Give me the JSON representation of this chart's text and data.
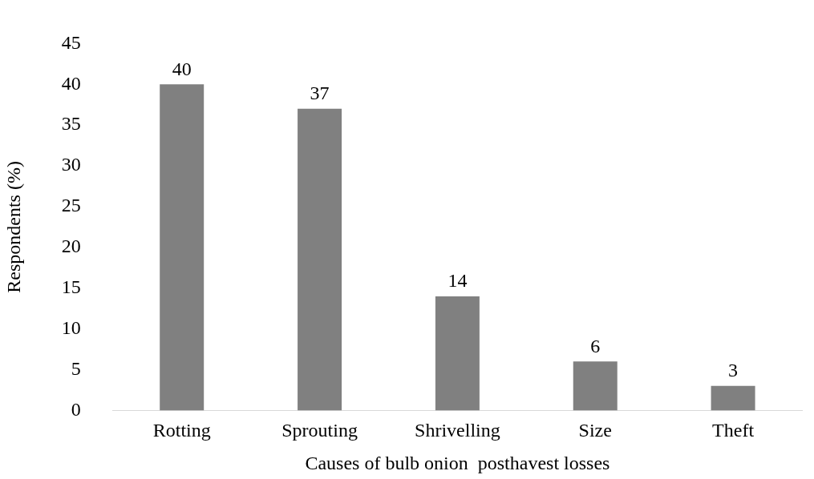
{
  "chart_data": {
    "type": "bar",
    "xlabel": "Causes of bulb onion  posthavest losses",
    "ylabel": "Respondents (%)",
    "categories": [
      "Rotting",
      "Sprouting",
      "Shrivelling",
      "Size",
      "Theft"
    ],
    "values": [
      40,
      37,
      14,
      6,
      3
    ],
    "color": "#808080",
    "ylim": [
      0,
      45
    ],
    "yticks": [
      0,
      5,
      10,
      15,
      20,
      25,
      30,
      35,
      40,
      45
    ],
    "grid": false,
    "data_labels": true
  }
}
